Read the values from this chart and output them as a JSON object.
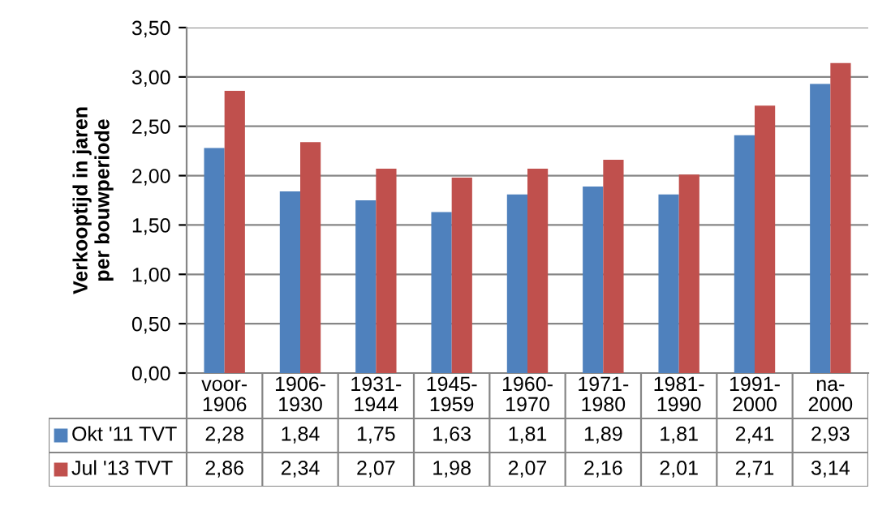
{
  "chart_data": {
    "type": "bar",
    "ylabel": "Verkooptijd in jaren\nper bouwperiode",
    "categories": [
      "voor-\n1906",
      "1906-\n1930",
      "1931-\n1944",
      "1945-\n1959",
      "1960-\n1970",
      "1971-\n1980",
      "1981-\n1990",
      "1991-\n2000",
      "na-\n2000"
    ],
    "series": [
      {
        "name": "Okt '11 TVT",
        "color": "#4f81bd",
        "values": [
          2.28,
          1.84,
          1.75,
          1.63,
          1.81,
          1.89,
          1.81,
          2.41,
          2.93
        ],
        "value_labels": [
          "2,28",
          "1,84",
          "1,75",
          "1,63",
          "1,81",
          "1,89",
          "1,81",
          "2,41",
          "2,93"
        ]
      },
      {
        "name": "Jul '13 TVT",
        "color": "#c0504d",
        "values": [
          2.86,
          2.34,
          2.07,
          1.98,
          2.07,
          2.16,
          2.01,
          2.71,
          3.14
        ],
        "value_labels": [
          "2,86",
          "2,34",
          "2,07",
          "1,98",
          "2,07",
          "2,16",
          "2,01",
          "2,71",
          "3,14"
        ]
      }
    ],
    "ylim": [
      0,
      3.5
    ],
    "yticks": [
      {
        "value": 0,
        "label": "0,00"
      },
      {
        "value": 0.5,
        "label": "0,50"
      },
      {
        "value": 1,
        "label": "1,00"
      },
      {
        "value": 1.5,
        "label": "1,50"
      },
      {
        "value": 2,
        "label": "2,00"
      },
      {
        "value": 2.5,
        "label": "2,50"
      },
      {
        "value": 3,
        "label": "3,00"
      },
      {
        "value": 3.5,
        "label": "3,50"
      }
    ],
    "grid": "y",
    "legend": "bottom"
  }
}
